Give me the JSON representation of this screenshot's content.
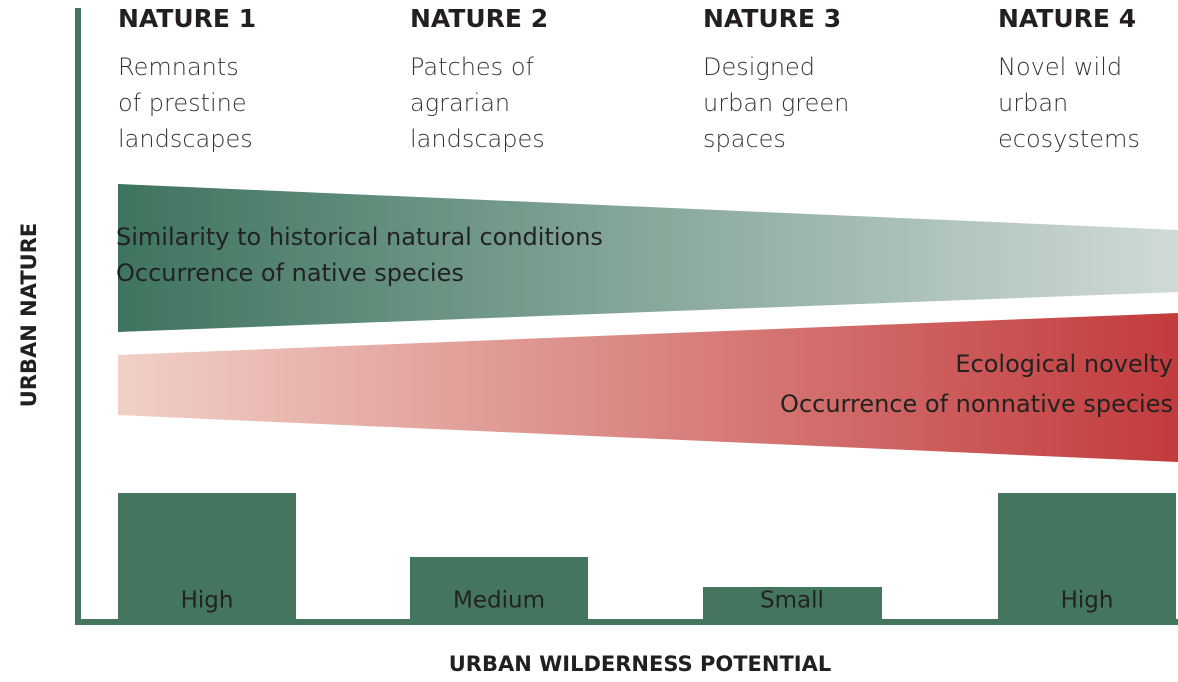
{
  "columns": [
    {
      "title": "NATURE 1",
      "lines": [
        "Remnants",
        "of prestine",
        "landscapes"
      ],
      "level": "High"
    },
    {
      "title": "NATURE 2",
      "lines": [
        "Patches of",
        "agrarian",
        "landscapes"
      ],
      "level": "Medium"
    },
    {
      "title": "NATURE 3",
      "lines": [
        "Designed",
        "urban green",
        "spaces"
      ],
      "level": "Small"
    },
    {
      "title": "NATURE 4",
      "lines": [
        "Novel wild",
        "urban",
        "ecosystems"
      ],
      "level": "High"
    }
  ],
  "green_band": [
    "Similarity to historical natural conditions",
    "Occurrence of native species"
  ],
  "red_band": [
    "Ecological novelty",
    "Occurrence of nonnative species"
  ],
  "y_axis_label": "URBAN NATURE",
  "x_axis_label": "URBAN WILDERNESS POTENTIAL"
}
